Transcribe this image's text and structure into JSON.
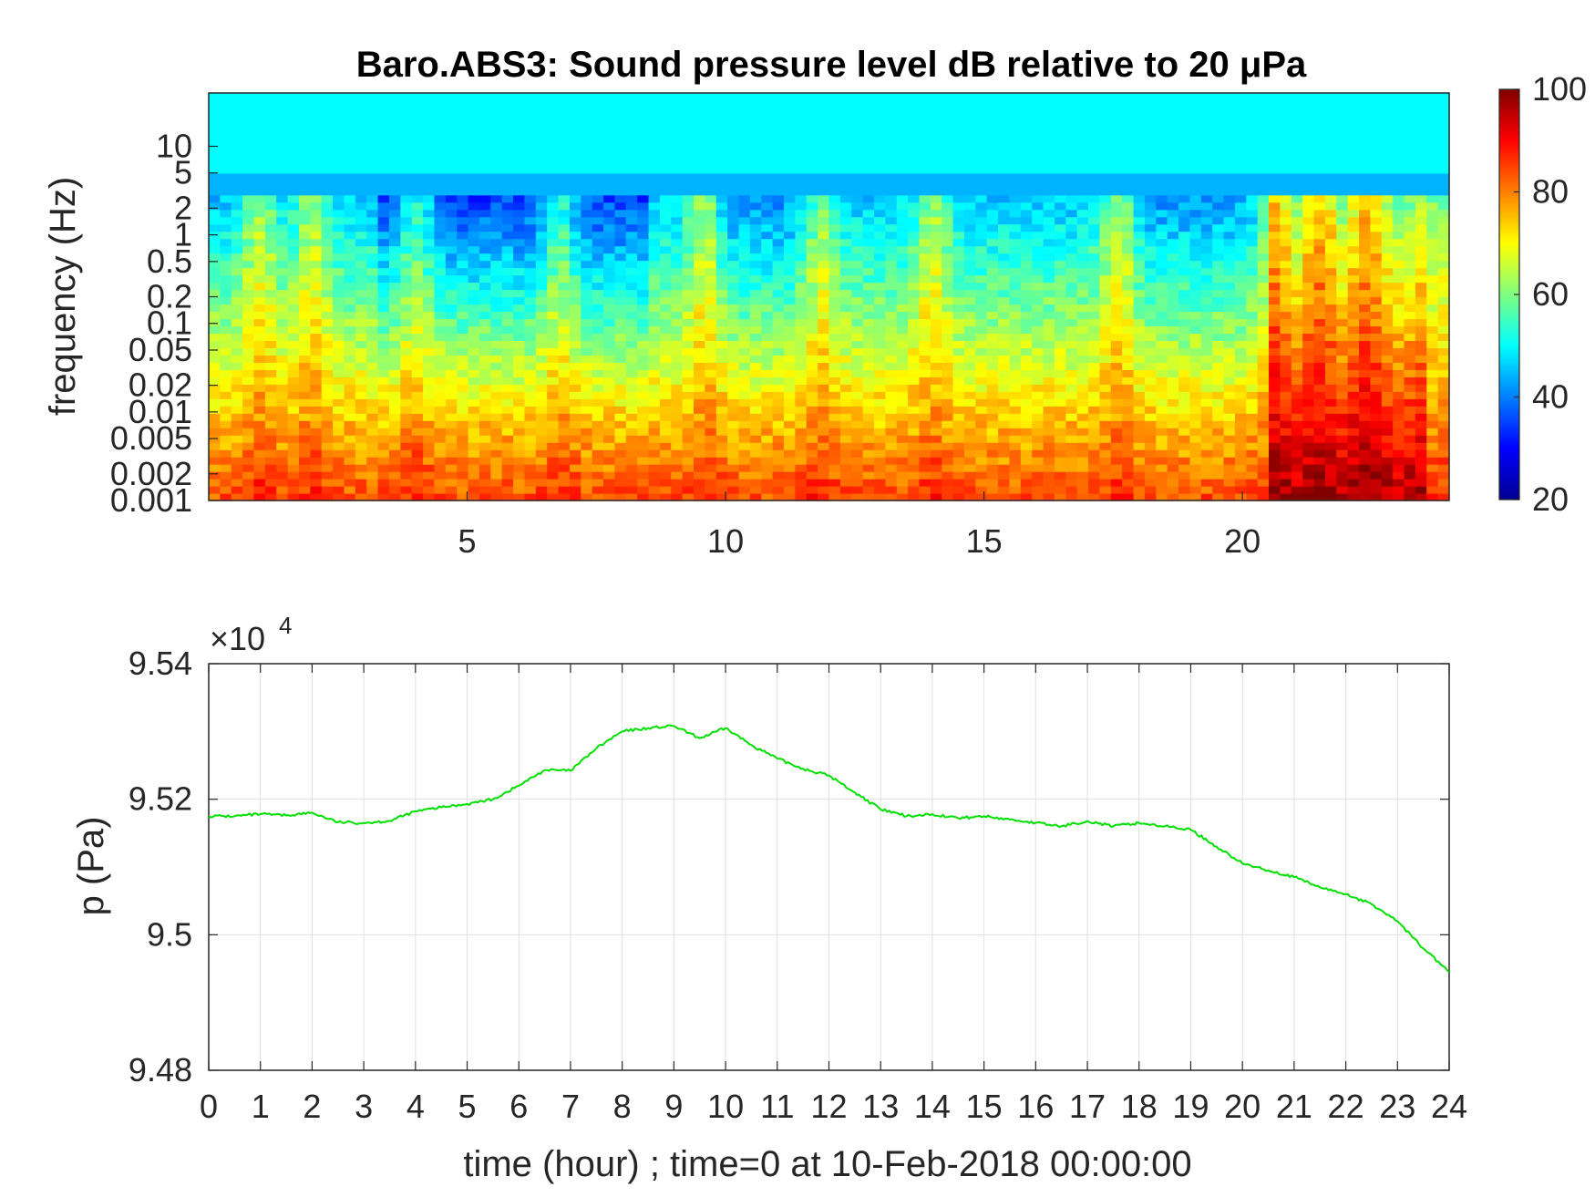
{
  "chart_data": [
    {
      "type": "heatmap",
      "title": "Baro.ABS3: Sound pressure level dB relative to 20 μPa",
      "ylabel": "frequency (Hz)",
      "xlabel": "",
      "x_ticks": [
        "5",
        "10",
        "15",
        "20"
      ],
      "x_tick_values": [
        5,
        10,
        15,
        20
      ],
      "xlim": [
        0,
        24
      ],
      "y_ticks": [
        "0.001",
        "0.002",
        "0.005",
        "0.01",
        "0.02",
        "0.05",
        "0.1",
        "0.2",
        "0.5",
        "1",
        "2",
        "5",
        "10"
      ],
      "y_tick_values": [
        0.001,
        0.002,
        0.005,
        0.01,
        0.02,
        0.05,
        0.1,
        0.2,
        0.5,
        1,
        2,
        5,
        10
      ],
      "ylim": [
        0.001,
        40
      ],
      "y_scale": "log",
      "colormap": "jet",
      "colorbar": {
        "ticks": [
          "100",
          "80",
          "60",
          "40",
          "20"
        ],
        "tick_values": [
          100,
          80,
          60,
          40,
          20
        ],
        "range": [
          20,
          100
        ]
      },
      "grid": false
    },
    {
      "type": "line",
      "title": "",
      "xlabel": "time (hour) ; time=0 at 10-Feb-2018 00:00:00",
      "ylabel": "p (Pa)",
      "exponent_label": "×10",
      "exponent_power": "4",
      "xlim": [
        0,
        24
      ],
      "ylim": [
        94800,
        95400
      ],
      "x_ticks": [
        "0",
        "1",
        "2",
        "3",
        "4",
        "5",
        "6",
        "7",
        "8",
        "9",
        "10",
        "11",
        "12",
        "13",
        "14",
        "15",
        "16",
        "17",
        "18",
        "19",
        "20",
        "21",
        "22",
        "23",
        "24"
      ],
      "y_ticks": [
        "9.54",
        "9.52",
        "9.5",
        "9.48"
      ],
      "y_tick_values": [
        95400,
        95200,
        95000,
        94800
      ],
      "grid": true,
      "line_color": "#00e000",
      "series": [
        {
          "x": [
            0,
            0.5,
            1,
            1.5,
            2,
            2.5,
            3,
            3.5,
            4,
            4.5,
            5,
            5.5,
            6,
            6.5,
            7,
            7.5,
            8,
            8.5,
            9,
            9.5,
            10,
            10.5,
            11,
            11.5,
            12,
            12.5,
            13,
            13.5,
            14,
            14.5,
            15,
            15.5,
            16,
            16.5,
            17,
            17.5,
            18,
            18.5,
            19,
            19.5,
            20,
            20.5,
            21,
            21.5,
            22,
            22.5,
            23,
            23.5,
            24
          ],
          "values": [
            95175,
            95175,
            95178,
            95176,
            95180,
            95166,
            95165,
            95168,
            95182,
            95188,
            95193,
            95200,
            95220,
            95243,
            95242,
            95275,
            95300,
            95305,
            95308,
            95290,
            95305,
            95280,
            95260,
            95245,
            95235,
            95210,
            95185,
            95175,
            95178,
            95172,
            95175,
            95170,
            95165,
            95160,
            95168,
            95160,
            95165,
            95160,
            95155,
            95130,
            95105,
            95095,
            95085,
            95070,
            95060,
            95045,
            95020,
            94980,
            94945
          ]
        }
      ]
    }
  ]
}
